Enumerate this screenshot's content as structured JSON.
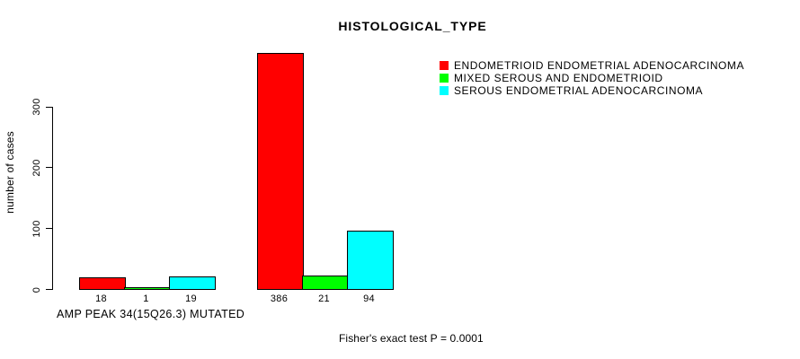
{
  "chart_data": {
    "type": "bar",
    "title": "HISTOLOGICAL_TYPE",
    "ylabel": "number of cases",
    "xlabel": "AMP PEAK 34(15Q26.3) MUTATED",
    "annotation": "Fisher's exact test P = 0.0001",
    "yticks": [
      0,
      100,
      200,
      300
    ],
    "ylim": [
      0,
      386
    ],
    "grid": false,
    "legend_position": "top-right",
    "series": [
      {
        "name": "ENDOMETRIOID ENDOMETRIAL ADENOCARCINOMA",
        "color": "#FF0000",
        "values": [
          18,
          386
        ]
      },
      {
        "name": "MIXED SEROUS AND ENDOMETRIOID",
        "color": "#00FF00",
        "values": [
          1,
          21
        ]
      },
      {
        "name": "SEROUS ENDOMETRIAL ADENOCARCINOMA",
        "color": "#00FFFF",
        "values": [
          19,
          94
        ]
      }
    ],
    "bar_value_labels": [
      [
        "18",
        "1",
        "19"
      ],
      [
        "386",
        "21",
        "94"
      ]
    ]
  },
  "colors": {
    "background": "#FFFFFF",
    "axis": "#000000",
    "text": "#000000"
  }
}
